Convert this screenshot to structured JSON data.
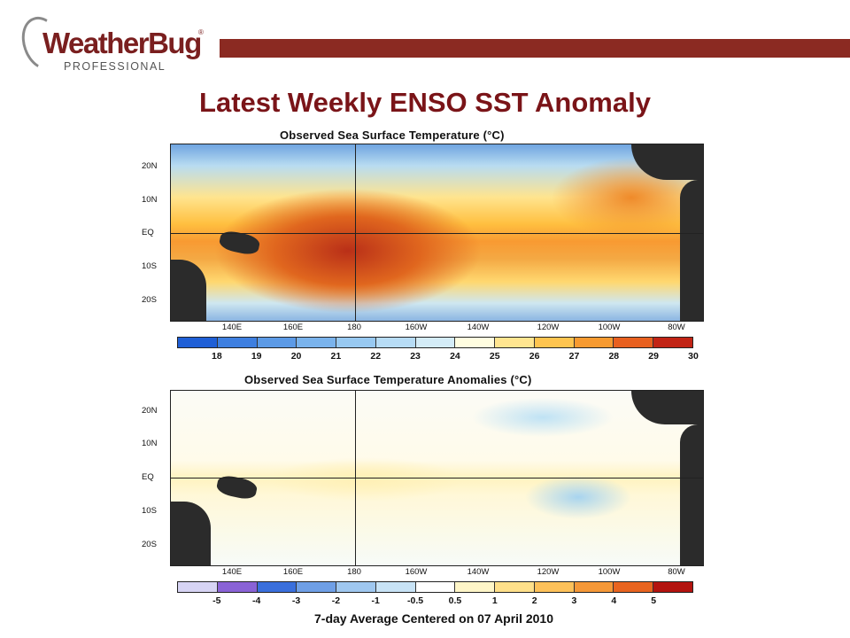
{
  "logo": {
    "name": "WeatherBug",
    "registered": "®",
    "subtitle": "PROFESSIONAL"
  },
  "header": {
    "accent_color": "#8b2a22"
  },
  "slide": {
    "title": "Latest Weekly ENSO SST Anomaly"
  },
  "panels": [
    {
      "title": "Observed Sea Surface Temperature (°C)",
      "y_ticks": [
        "20N",
        "10N",
        "EQ",
        "10S",
        "20S"
      ],
      "x_ticks": [
        "140E",
        "160E",
        "180",
        "160W",
        "140W",
        "120W",
        "100W",
        "80W"
      ],
      "colorbar": {
        "colors": [
          "#1f5fd6",
          "#3e7fe0",
          "#5c9ae6",
          "#7ab3ec",
          "#98c9f1",
          "#b7dcf5",
          "#d4ecf7",
          "#fffde0",
          "#ffe590",
          "#fec44f",
          "#f79a30",
          "#e8601f",
          "#c22415"
        ],
        "labels": [
          "18",
          "19",
          "20",
          "21",
          "22",
          "23",
          "24",
          "25",
          "26",
          "27",
          "28",
          "29",
          "30"
        ]
      }
    },
    {
      "title": "Observed Sea Surface Temperature Anomalies (°C)",
      "y_ticks": [
        "20N",
        "10N",
        "EQ",
        "10S",
        "20S"
      ],
      "x_ticks": [
        "140E",
        "160E",
        "180",
        "160W",
        "140W",
        "120W",
        "100W",
        "80W"
      ],
      "colorbar": {
        "colors": [
          "#d7d4f4",
          "#8a63d6",
          "#3a6fdc",
          "#6f9fe6",
          "#9fc7ef",
          "#c8e3f6",
          "#ffffff",
          "#fff6c8",
          "#ffe08a",
          "#fdc15a",
          "#f59838",
          "#e8641f",
          "#b3130f"
        ],
        "labels": [
          "-5",
          "-4",
          "-3",
          "-2",
          "-1",
          "-0.5",
          "0.5",
          "1",
          "2",
          "3",
          "4",
          "5"
        ]
      }
    }
  ],
  "footnote": "7-day Average Centered on 07 April 2010"
}
